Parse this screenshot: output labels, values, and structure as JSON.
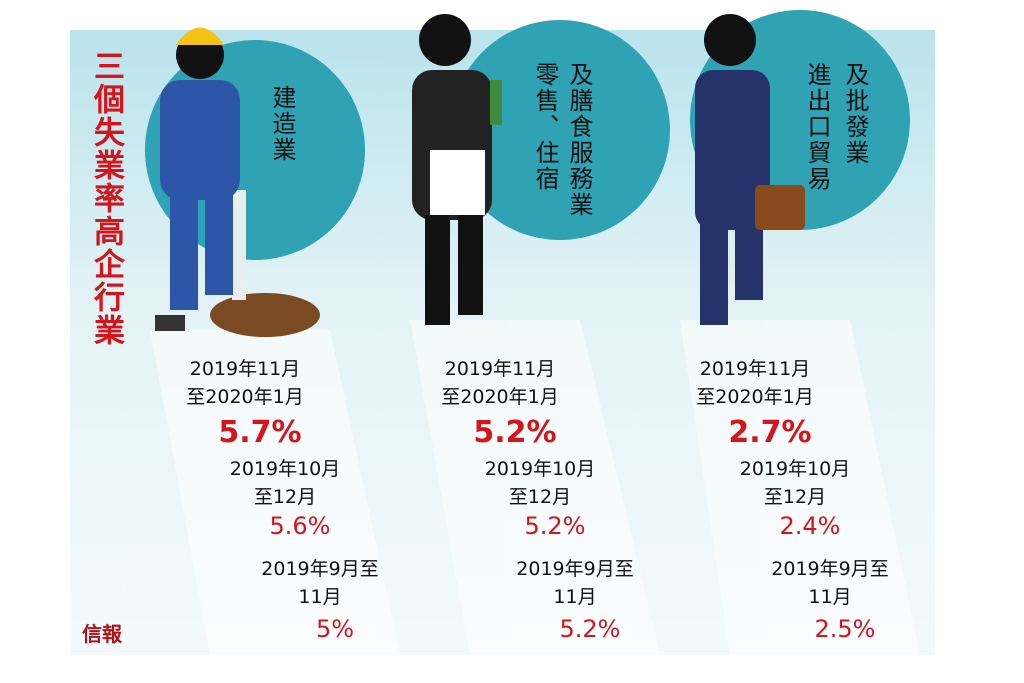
{
  "title": "三個失業率高企行業",
  "source": "信報",
  "industries": [
    {
      "name": [
        "建造業"
      ],
      "periods": [
        {
          "label": [
            "2019年11月",
            "至2020年1月"
          ],
          "rate": "5.7%"
        },
        {
          "label": [
            "2019年10月",
            "至12月"
          ],
          "rate": "5.6%"
        },
        {
          "label": [
            "2019年9月至",
            "11月"
          ],
          "rate": "5%"
        }
      ]
    },
    {
      "name": [
        "零售、住宿",
        "及膳食服務業"
      ],
      "periods": [
        {
          "label": [
            "2019年11月",
            "至2020年1月"
          ],
          "rate": "5.2%"
        },
        {
          "label": [
            "2019年10月",
            "至12月"
          ],
          "rate": "5.2%"
        },
        {
          "label": [
            "2019年9月至",
            "11月"
          ],
          "rate": "5.2%"
        }
      ]
    },
    {
      "name": [
        "進出口貿易",
        "及批發業"
      ],
      "periods": [
        {
          "label": [
            "2019年11月",
            "至2020年1月"
          ],
          "rate": "2.7%"
        },
        {
          "label": [
            "2019年10月",
            "至12月"
          ],
          "rate": "2.4%"
        },
        {
          "label": [
            "2019年9月至",
            "11月"
          ],
          "rate": "2.5%"
        }
      ]
    }
  ]
}
